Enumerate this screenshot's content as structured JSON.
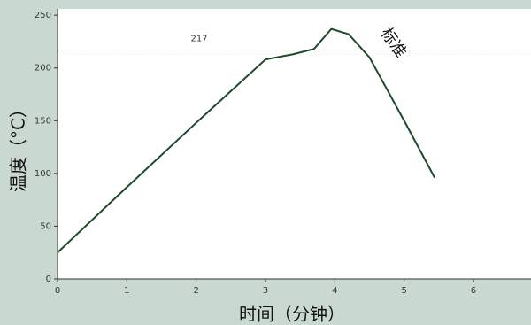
{
  "chart_data": {
    "type": "line",
    "x_label": "时间（分钟）",
    "y_label": "温度（°C）",
    "x": [
      0,
      1,
      2,
      3,
      3.4,
      3.7,
      3.95,
      4.2,
      4.5,
      5,
      5.44
    ],
    "series": [
      {
        "name": "标准",
        "color": "#1f4a2a",
        "values": [
          25,
          87,
          148,
          208,
          213,
          218,
          237,
          232,
          210,
          150,
          96
        ]
      }
    ],
    "xlim": [
      0,
      6.83
    ],
    "xticks": [
      0,
      1,
      2,
      3,
      4,
      5,
      6
    ],
    "ylim": [
      0,
      256
    ],
    "yticks": [
      0,
      50,
      100,
      150,
      200,
      250
    ],
    "reference_line": {
      "value": 217,
      "label": "217"
    }
  }
}
